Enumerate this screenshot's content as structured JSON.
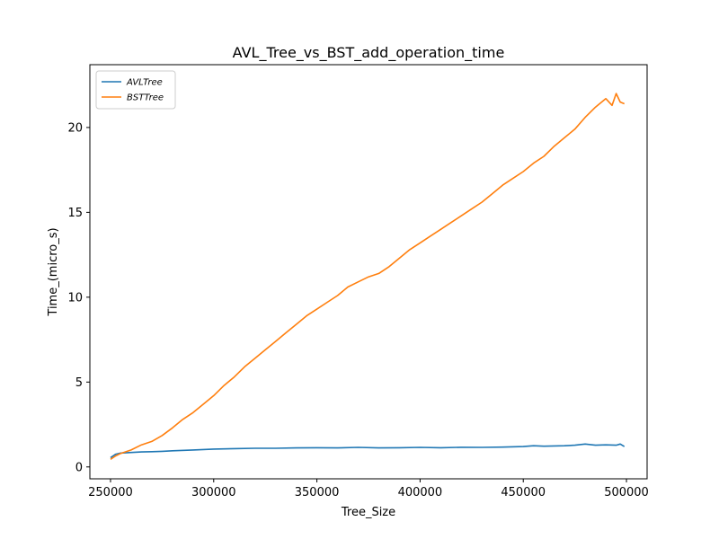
{
  "chart_data": {
    "type": "line",
    "title": "AVL_Tree_vs_BST_add_operation_time",
    "xlabel": "Tree_Size",
    "ylabel": "Time_(micro_s)",
    "xlim": [
      240000,
      510000
    ],
    "ylim": [
      -0.7,
      23.7
    ],
    "xticks": [
      250000,
      300000,
      350000,
      400000,
      450000,
      500000
    ],
    "yticks": [
      0,
      5,
      10,
      15,
      20
    ],
    "grid": false,
    "legend_position": "top-left",
    "series": [
      {
        "name": "AVLTree",
        "color": "#1f77b4",
        "x": [
          250000,
          252500,
          255000,
          260000,
          265000,
          270000,
          275000,
          280000,
          290000,
          300000,
          310000,
          320000,
          330000,
          340000,
          350000,
          360000,
          370000,
          380000,
          390000,
          400000,
          410000,
          420000,
          430000,
          440000,
          450000,
          455000,
          460000,
          470000,
          475000,
          480000,
          485000,
          490000,
          495000,
          497000,
          499000
        ],
        "y": [
          0.55,
          0.75,
          0.82,
          0.85,
          0.88,
          0.9,
          0.92,
          0.95,
          1.0,
          1.05,
          1.08,
          1.1,
          1.1,
          1.12,
          1.13,
          1.12,
          1.15,
          1.12,
          1.13,
          1.15,
          1.13,
          1.16,
          1.15,
          1.17,
          1.2,
          1.25,
          1.22,
          1.25,
          1.28,
          1.35,
          1.28,
          1.3,
          1.28,
          1.35,
          1.2
        ]
      },
      {
        "name": "BSTTree",
        "color": "#ff7f0e",
        "x": [
          250000,
          252500,
          255000,
          260000,
          265000,
          270000,
          275000,
          280000,
          285000,
          290000,
          295000,
          300000,
          305000,
          310000,
          315000,
          320000,
          325000,
          330000,
          335000,
          340000,
          345000,
          350000,
          355000,
          360000,
          365000,
          370000,
          375000,
          380000,
          385000,
          390000,
          395000,
          400000,
          405000,
          410000,
          415000,
          420000,
          425000,
          430000,
          435000,
          440000,
          445000,
          450000,
          455000,
          460000,
          465000,
          470000,
          475000,
          480000,
          485000,
          490000,
          493000,
          495000,
          497000,
          499000
        ],
        "y": [
          0.45,
          0.65,
          0.8,
          1.0,
          1.3,
          1.5,
          1.85,
          2.3,
          2.8,
          3.2,
          3.7,
          4.2,
          4.8,
          5.3,
          5.9,
          6.4,
          6.9,
          7.4,
          7.9,
          8.4,
          8.9,
          9.3,
          9.7,
          10.1,
          10.6,
          10.9,
          11.2,
          11.4,
          11.8,
          12.3,
          12.8,
          13.2,
          13.6,
          14.0,
          14.4,
          14.8,
          15.2,
          15.6,
          16.1,
          16.6,
          17.0,
          17.4,
          17.9,
          18.3,
          18.9,
          19.4,
          19.9,
          20.6,
          21.2,
          21.7,
          21.3,
          22.0,
          21.5,
          21.4
        ]
      }
    ]
  }
}
